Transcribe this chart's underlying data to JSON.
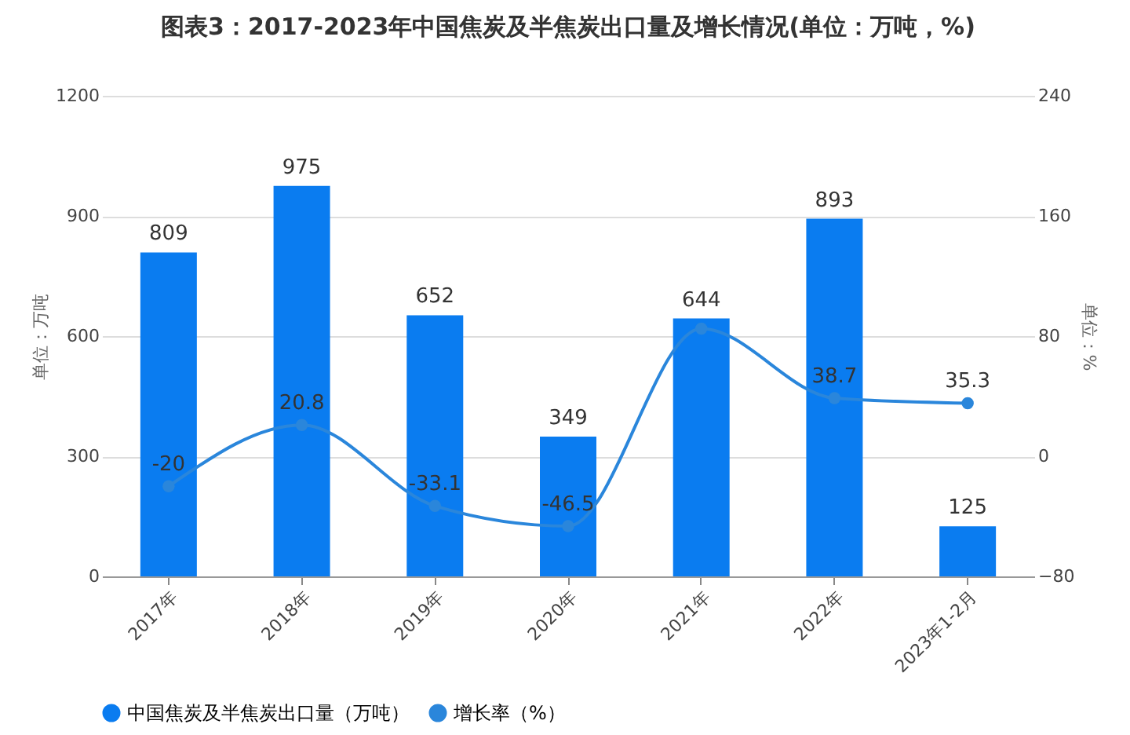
{
  "chart_data": {
    "type": "bar",
    "title": "图表3：2017-2023年中国焦炭及半焦炭出口量及增长情况(单位：万吨，%)",
    "categories": [
      "2017年",
      "2018年",
      "2019年",
      "2020年",
      "2021年",
      "2022年",
      "2023年1-2月"
    ],
    "ylabel": "单位：万吨",
    "y2label": "单位：%",
    "ylim": [
      0,
      1200
    ],
    "yticks": [
      0,
      300,
      600,
      900,
      1200
    ],
    "y2lim": [
      -80,
      240
    ],
    "y2ticks": [
      -80,
      0,
      80,
      160,
      240
    ],
    "grid": "y",
    "legend": "bottom",
    "series": [
      {
        "name": "中国焦炭及半焦炭出口量（万吨）",
        "color": "#0a7cf0",
        "values": [
          809,
          975,
          652,
          349,
          644,
          893,
          125
        ],
        "value_labels": [
          "809",
          "975",
          "652",
          "349",
          "644",
          "893",
          "125"
        ]
      },
      {
        "name": "增长率（%）",
        "type": "line",
        "axis": "y2",
        "marker": "circle",
        "color": "#2a86db",
        "values": [
          -20,
          20.8,
          -33.1,
          -46.5,
          85,
          38.7,
          35.3
        ],
        "value_labels": [
          "-20",
          "20.8",
          "-33.1",
          "-46.5",
          null,
          "38.7",
          "35.3"
        ]
      }
    ]
  }
}
